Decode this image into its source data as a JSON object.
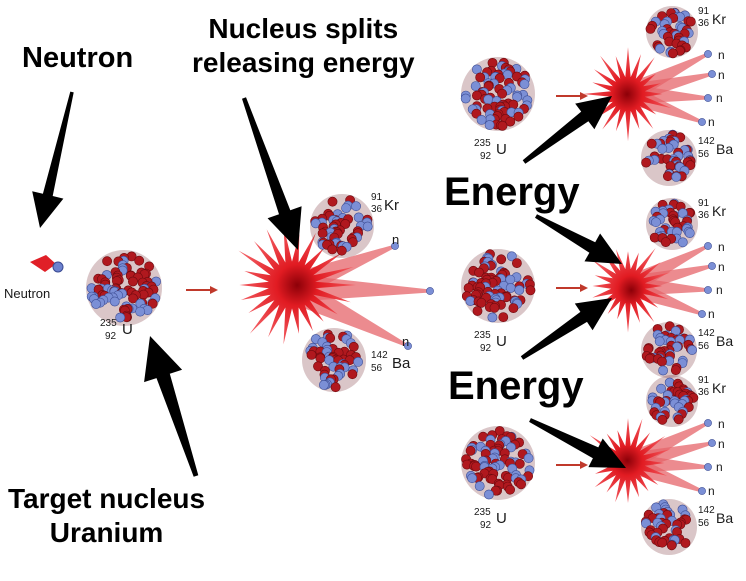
{
  "callouts": {
    "neutron": "Neutron",
    "splits_line1": "Nucleus splits",
    "splits_line2": "releasing energy",
    "target_line1": "Target nucleus",
    "target_line2": "Uranium",
    "energy_upper": "Energy",
    "energy_lower": "Energy"
  },
  "labels": {
    "neutron_small": "Neutron",
    "neutron_symbol": "n",
    "uranium": {
      "mass": "235",
      "atomic": "92",
      "symbol": "U"
    },
    "krypton": {
      "mass": "91",
      "atomic": "36",
      "symbol": "Kr"
    },
    "barium": {
      "mass": "142",
      "atomic": "56",
      "symbol": "Ba"
    }
  },
  "colors": {
    "proton": "#b0181e",
    "neutron": "#7b8fd6",
    "flash": "#e8202a",
    "arrow": "#000000",
    "small_arrow": "#c0392b"
  }
}
